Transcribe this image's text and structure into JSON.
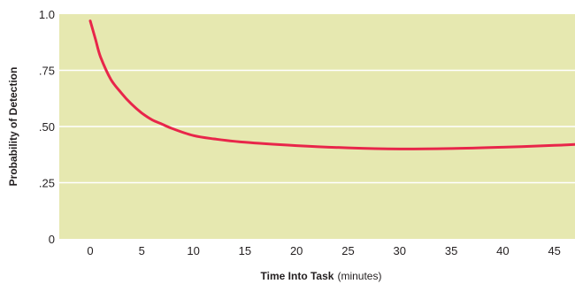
{
  "chart_data": {
    "type": "line",
    "xlabel": "Time Into Task",
    "xlabel_unit": "(minutes)",
    "ylabel": "Probability of Detection",
    "xlim": [
      -3,
      47
    ],
    "ylim": [
      0,
      1.0
    ],
    "x_ticks": [
      0,
      5,
      10,
      15,
      20,
      25,
      30,
      35,
      40,
      45
    ],
    "x_tick_labels": [
      "0",
      "5",
      "10",
      "15",
      "20",
      "25",
      "30",
      "35",
      "40",
      "45"
    ],
    "y_ticks": [
      0,
      0.25,
      0.5,
      0.75,
      1.0
    ],
    "y_tick_labels": [
      "0",
      ".25",
      ".50",
      ".75",
      "1.0"
    ],
    "grid": "horizontal",
    "colors": {
      "plot_background": "#e6e8b0",
      "line": "#e8264a",
      "gridline": "#ffffff"
    },
    "series": [
      {
        "x": [
          0,
          0.5,
          1,
          2,
          3,
          4,
          5,
          6,
          7,
          8,
          10,
          12,
          15,
          20,
          25,
          30,
          35,
          40,
          45,
          47
        ],
        "y": [
          0.97,
          0.89,
          0.81,
          0.71,
          0.65,
          0.6,
          0.56,
          0.53,
          0.51,
          0.49,
          0.46,
          0.445,
          0.43,
          0.415,
          0.405,
          0.4,
          0.402,
          0.408,
          0.416,
          0.42
        ]
      }
    ]
  }
}
